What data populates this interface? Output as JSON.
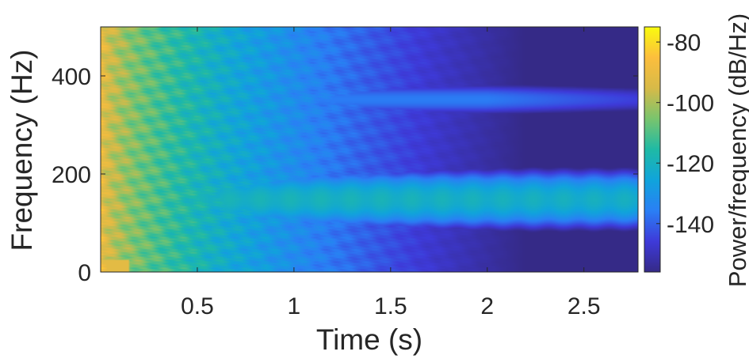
{
  "chart_data": {
    "type": "heatmap",
    "title": "",
    "xlabel": "Time (s)",
    "ylabel": "Frequency (Hz)",
    "xlim": [
      0.0,
      2.78
    ],
    "ylim": [
      0,
      500
    ],
    "x_ticks": [
      0.5,
      1,
      1.5,
      2,
      2.5
    ],
    "x_tick_labels": [
      "0.5",
      "1",
      "1.5",
      "2",
      "2.5"
    ],
    "y_ticks": [
      0,
      200,
      400
    ],
    "y_tick_labels": [
      "0",
      "200",
      "400"
    ],
    "colorbar": {
      "label": "Power/frequency (dB/Hz)",
      "range": [
        -156,
        -75
      ],
      "ticks": [
        -80,
        -100,
        -120,
        -140
      ],
      "tick_labels": [
        "-80",
        "-100",
        "-120",
        "-140"
      ],
      "colormap": "parula"
    },
    "features": [
      {
        "kind": "sustained_band",
        "freq_center": 148,
        "freq_width": 60,
        "start": 0.0,
        "end": 2.78,
        "peak_db": -120
      },
      {
        "kind": "sustained_band",
        "freq_center": 352,
        "freq_width": 38,
        "start": 0.0,
        "end": 2.65,
        "peak_db": -136
      },
      {
        "kind": "broadband_decay",
        "start_db": -88,
        "end_db": -156,
        "duration": 2.2
      }
    ],
    "grid": false
  },
  "colors": {
    "floor": "#3e26a8",
    "axis": "#262626",
    "parula_stops": [
      "#352a87",
      "#3e3ad9",
      "#2a7ff5",
      "#10a4db",
      "#1fbaa5",
      "#79c46d",
      "#d7ba48",
      "#fcbe3d",
      "#f9fb0e"
    ]
  }
}
